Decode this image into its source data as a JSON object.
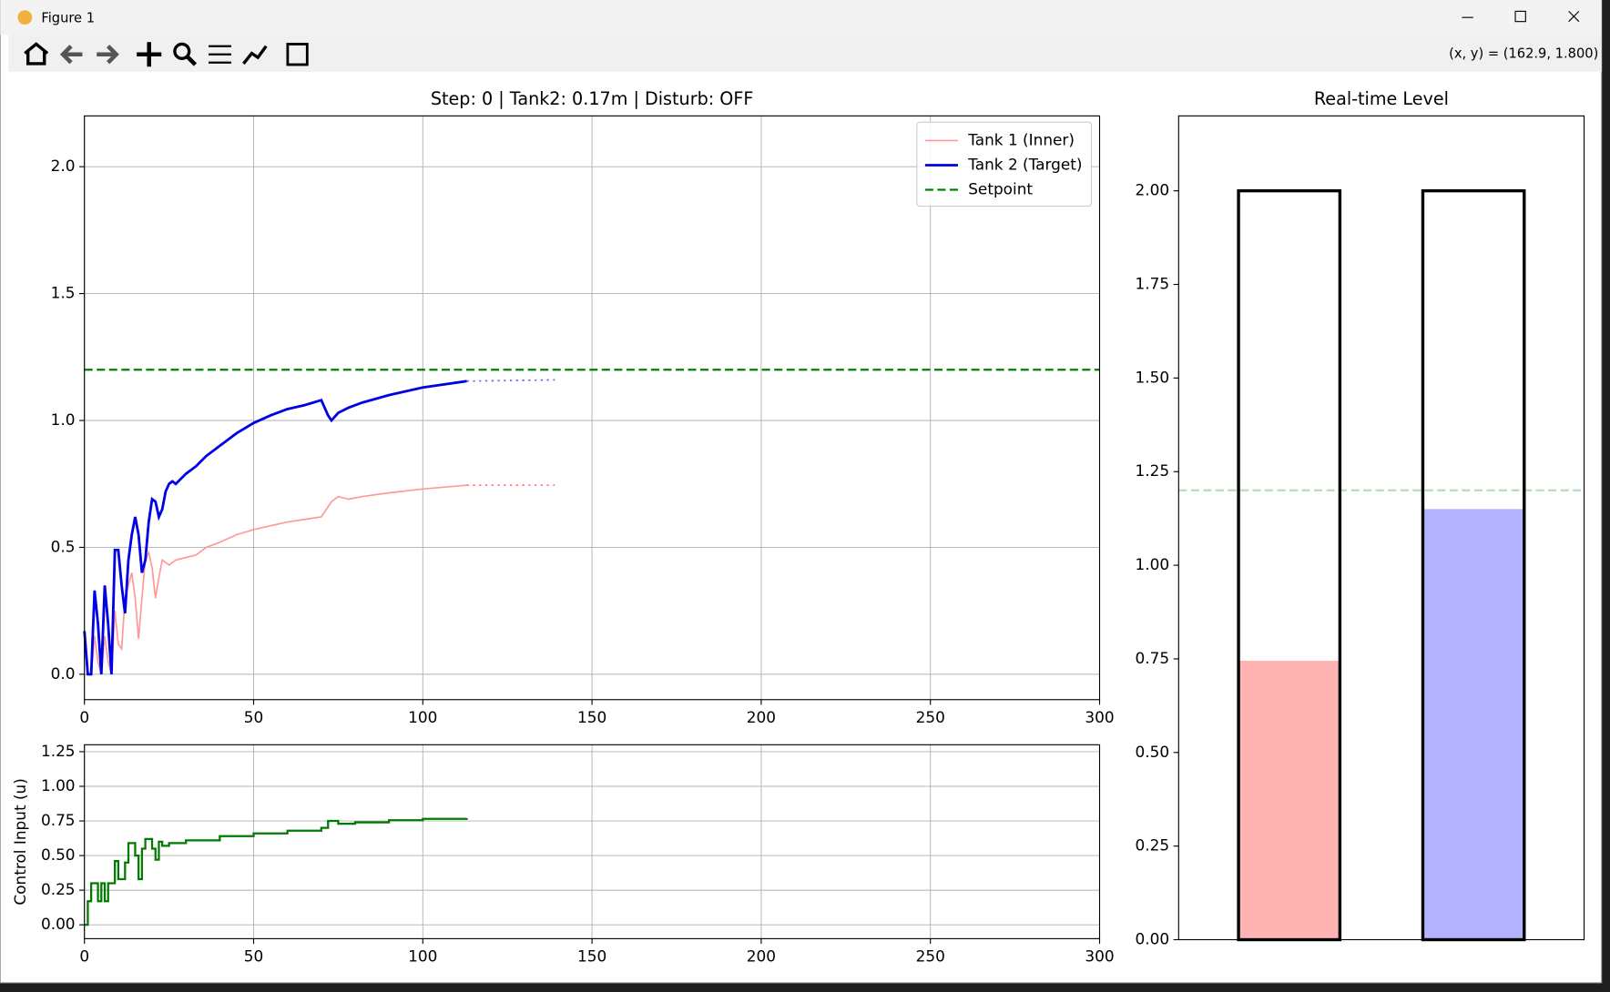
{
  "window": {
    "title": "Figure 1",
    "coords": "(x, y) = (162.9, 1.800)"
  },
  "chart_data": [
    {
      "type": "line",
      "title": "Step: 0 | Tank2: 0.17m | Disturb: OFF",
      "xlim": [
        0,
        300
      ],
      "xticks": [
        0,
        50,
        100,
        150,
        200,
        250,
        300
      ],
      "ylim": [
        -0.1,
        2.2
      ],
      "yticks": [
        {
          "value": 0,
          "label": "0.0"
        },
        0.5,
        {
          "value": 1,
          "label": "1.0"
        },
        1.5,
        {
          "value": 2,
          "label": "2.0"
        }
      ],
      "grid": true,
      "legend": "upper right",
      "series": [
        {
          "name": "Tank 1 (Inner)",
          "color": "#ff9999",
          "width": 1.5,
          "x": [
            0,
            1,
            2,
            3,
            4,
            5,
            6,
            7,
            8,
            9,
            10,
            11,
            12,
            13,
            14,
            15,
            16,
            17,
            18,
            19,
            20,
            21,
            22,
            23,
            25,
            27,
            30,
            33,
            36,
            40,
            45,
            50,
            55,
            60,
            65,
            70,
            73,
            75,
            78,
            82,
            90,
            100,
            113
          ],
          "values": [
            0,
            0,
            0,
            0.15,
            0.05,
            0,
            0.15,
            0.05,
            0,
            0.25,
            0.12,
            0.1,
            0.3,
            0.35,
            0.4,
            0.3,
            0.14,
            0.3,
            0.45,
            0.48,
            0.42,
            0.3,
            0.38,
            0.45,
            0.43,
            0.45,
            0.46,
            0.47,
            0.5,
            0.52,
            0.55,
            0.57,
            0.585,
            0.6,
            0.61,
            0.62,
            0.68,
            0.7,
            0.69,
            0.7,
            0.715,
            0.73,
            0.745
          ]
        },
        {
          "name": "Tank 2 (Target)",
          "color": "#0000e6",
          "width": 2.5,
          "x": [
            0,
            1,
            2,
            3,
            4,
            5,
            6,
            7,
            8,
            9,
            10,
            11,
            12,
            13,
            14,
            15,
            16,
            17,
            18,
            19,
            20,
            21,
            22,
            23,
            24,
            25,
            26,
            27,
            30,
            33,
            36,
            40,
            45,
            50,
            55,
            60,
            65,
            70,
            72,
            73,
            75,
            78,
            82,
            90,
            100,
            113
          ],
          "values": [
            0.17,
            0,
            0,
            0.33,
            0.2,
            0,
            0.35,
            0.2,
            0,
            0.49,
            0.49,
            0.35,
            0.24,
            0.45,
            0.55,
            0.62,
            0.55,
            0.4,
            0.45,
            0.6,
            0.69,
            0.68,
            0.62,
            0.65,
            0.72,
            0.75,
            0.76,
            0.75,
            0.79,
            0.82,
            0.86,
            0.9,
            0.95,
            0.99,
            1.02,
            1.045,
            1.06,
            1.08,
            1.02,
            1,
            1.03,
            1.05,
            1.07,
            1.1,
            1.13,
            1.155
          ]
        },
        {
          "name": "Setpoint",
          "color": "#008000",
          "width": 2,
          "style": "dashed",
          "x": [
            0,
            300
          ],
          "values": [
            1.2,
            1.2
          ]
        },
        {
          "color": "#ff7777",
          "width": 1.5,
          "style": "dotted",
          "x": [
            113,
            139
          ],
          "values": [
            0.745,
            0.745
          ]
        },
        {
          "color": "#6666ff",
          "width": 1.5,
          "style": "dotted",
          "x": [
            113,
            139
          ],
          "values": [
            1.155,
            1.16
          ]
        }
      ]
    },
    {
      "type": "line",
      "ylabel": "Control Input (u)",
      "drawstyle": "steps-post",
      "xlim": [
        0,
        300
      ],
      "xticks": [
        0,
        50,
        100,
        150,
        200,
        250,
        300
      ],
      "ylim": [
        -0.1,
        1.3
      ],
      "yticks": [
        {
          "value": 0,
          "label": "0.00"
        },
        0.25,
        {
          "value": 0.5,
          "label": "0.50"
        },
        0.75,
        {
          "value": 1,
          "label": "1.00"
        },
        1.25
      ],
      "grid": true,
      "series": [
        {
          "color": "#007a00",
          "width": 2,
          "x": [
            0,
            1,
            2,
            3,
            4,
            5,
            6,
            7,
            8,
            9,
            10,
            11,
            12,
            13,
            14,
            15,
            16,
            17,
            18,
            19,
            20,
            21,
            22,
            23,
            25,
            30,
            40,
            50,
            60,
            70,
            72,
            75,
            80,
            90,
            100,
            113
          ],
          "values": [
            0,
            0.17,
            0.3,
            0.3,
            0.17,
            0.3,
            0.17,
            0.3,
            0.3,
            0.46,
            0.33,
            0.33,
            0.45,
            0.59,
            0.59,
            0.5,
            0.33,
            0.55,
            0.62,
            0.62,
            0.55,
            0.47,
            0.6,
            0.57,
            0.59,
            0.61,
            0.64,
            0.66,
            0.68,
            0.7,
            0.75,
            0.73,
            0.74,
            0.755,
            0.765,
            0.77
          ]
        }
      ]
    },
    {
      "type": "bar",
      "title": "Real-time Level",
      "xlim": [
        -0.6,
        1.6
      ],
      "bar_width": 0.55,
      "ylim": [
        0,
        2.2
      ],
      "yticks": [
        {
          "value": 0,
          "label": "0.00"
        },
        0.25,
        {
          "value": 0.5,
          "label": "0.50"
        },
        0.75,
        {
          "value": 1,
          "label": "1.00"
        },
        1.25,
        {
          "value": 1.5,
          "label": "1.50"
        },
        1.75,
        {
          "value": 2,
          "label": "2.00"
        }
      ],
      "grid": false,
      "series": [
        {
          "colors": [
            "#ffb3b3",
            "#b3b3ff"
          ],
          "values": [
            0.745,
            1.15
          ]
        },
        {
          "fill": "none",
          "edgecolor": "#000000",
          "linewidth": 3,
          "values": [
            2,
            2
          ]
        }
      ],
      "hlines": [
        {
          "value": 1.2,
          "color": "#2ca02c",
          "alpha": 0.35,
          "style": "dashed"
        }
      ]
    }
  ]
}
